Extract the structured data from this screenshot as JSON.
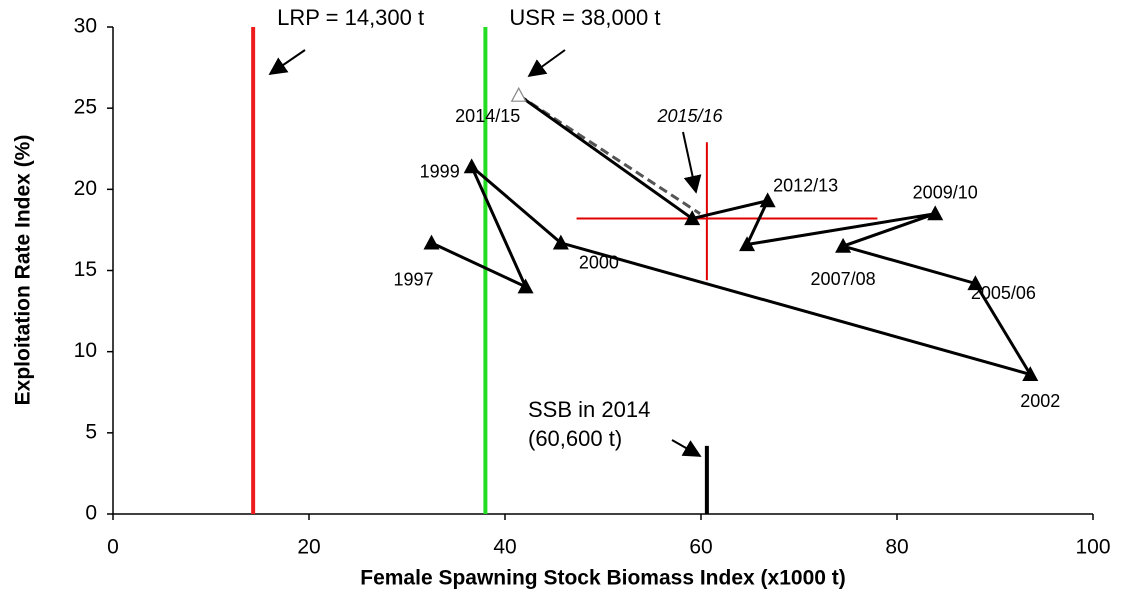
{
  "chart_data": {
    "type": "line",
    "x_label": "Female Spawning Stock Biomass Index (x1000 t)",
    "y_label": "Exploitation Rate Index (%)",
    "xlim": [
      0,
      100
    ],
    "xticks": [
      0,
      20,
      40,
      60,
      80,
      100
    ],
    "ylim": [
      0,
      30
    ],
    "yticks": [
      0,
      5,
      10,
      15,
      20,
      25,
      30
    ],
    "x": [
      32.5,
      42.1,
      36.6,
      45.7,
      93.6,
      88.0,
      74.5,
      83.9,
      64.7,
      66.8,
      59.1,
      41.4
    ],
    "values": [
      16.7,
      14.0,
      21.4,
      16.7,
      8.6,
      14.2,
      16.5,
      18.5,
      16.6,
      19.3,
      18.2,
      25.8
    ],
    "point_labels": [
      "1997",
      null,
      "1999",
      "2000",
      "2002",
      "2005/06",
      "2007/08",
      "2009/10",
      null,
      "2012/13",
      null,
      "2014/15"
    ],
    "color": "#000000",
    "projection": {
      "label": "2015/16",
      "x": [
        41.4,
        59.9
      ],
      "values": [
        25.8,
        18.5
      ],
      "color": "#555555"
    },
    "estimate_2015_16": {
      "x": 60.6,
      "y": 18.2,
      "xrange": [
        47.3,
        78.0
      ],
      "yrange": [
        14.4,
        22.9
      ],
      "color": "#e00000"
    },
    "reference_lines": [
      {
        "label": "LRP = 14,300 t",
        "x": 14.3,
        "color": "#ee1c1c"
      },
      {
        "label": "USR = 38,000 t",
        "x": 38.0,
        "color": "#22dd22"
      }
    ],
    "ssb_2014": {
      "label": [
        "SSB in 2014",
        "(60,600 t)"
      ],
      "x": 60.6,
      "y": 4.2,
      "color": "#000000"
    }
  }
}
